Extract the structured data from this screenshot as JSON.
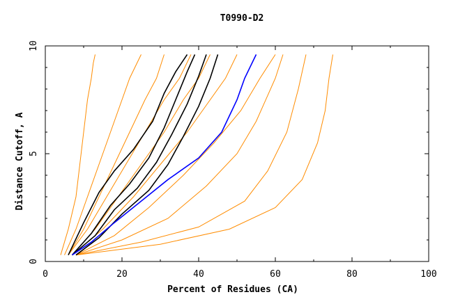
{
  "chart_data": {
    "type": "line",
    "title": "T0990-D2",
    "xlabel": "Percent of Residues (CA)",
    "ylabel": "Distance Cutoff, A",
    "xlim": [
      0,
      100
    ],
    "ylim": [
      0,
      10
    ],
    "xticks": [
      0,
      20,
      40,
      60,
      80,
      100
    ],
    "yticks": [
      0,
      5,
      10
    ],
    "grid": false,
    "legend": "none",
    "colors": {
      "background_curves": "#ff8c00",
      "highlight": "#000000",
      "reference": "#0000ff"
    },
    "series": [
      {
        "group": "background",
        "color": "#ff8c00",
        "x": [
          4,
          6,
          8,
          9,
          10,
          11,
          12,
          12.5,
          13
        ],
        "y": [
          0.3,
          1.5,
          3,
          4.5,
          6,
          7.5,
          8.5,
          9.2,
          9.6
        ]
      },
      {
        "group": "background",
        "color": "#ff8c00",
        "x": [
          5,
          8,
          11,
          14,
          17,
          20,
          22,
          25
        ],
        "y": [
          0.3,
          1.5,
          3,
          4.5,
          6,
          7.5,
          8.5,
          9.6
        ]
      },
      {
        "group": "background",
        "color": "#ff8c00",
        "x": [
          6,
          10,
          14,
          18,
          22,
          26,
          29,
          31
        ],
        "y": [
          0.3,
          1.5,
          3,
          4.5,
          6,
          7.5,
          8.5,
          9.6
        ]
      },
      {
        "group": "background",
        "color": "#ff8c00",
        "x": [
          6,
          11,
          16,
          21,
          26,
          31,
          35,
          38
        ],
        "y": [
          0.3,
          1.5,
          3,
          4.5,
          6,
          7.5,
          8.5,
          9.6
        ]
      },
      {
        "group": "background",
        "color": "#ff8c00",
        "x": [
          7,
          13,
          19,
          25,
          31,
          36,
          40,
          43
        ],
        "y": [
          0.3,
          1.5,
          3,
          4.5,
          6,
          7.5,
          8.5,
          9.6
        ]
      },
      {
        "group": "background",
        "color": "#ff8c00",
        "x": [
          7,
          15,
          23,
          30,
          37,
          43,
          47,
          50
        ],
        "y": [
          0.3,
          1.5,
          3,
          4.5,
          6,
          7.5,
          8.5,
          9.6
        ]
      },
      {
        "group": "background",
        "color": "#ff8c00",
        "x": [
          8,
          18,
          27,
          36,
          44,
          51,
          56,
          60
        ],
        "y": [
          0.3,
          1.2,
          2.5,
          4,
          5.5,
          7,
          8.5,
          9.6
        ]
      },
      {
        "group": "background",
        "color": "#ff8c00",
        "x": [
          8,
          20,
          32,
          42,
          50,
          55,
          60,
          62
        ],
        "y": [
          0.3,
          1,
          2,
          3.5,
          5,
          6.5,
          8.5,
          9.6
        ]
      },
      {
        "group": "background",
        "color": "#ff8c00",
        "x": [
          8,
          25,
          40,
          52,
          58,
          63,
          66,
          68
        ],
        "y": [
          0.3,
          0.9,
          1.6,
          2.8,
          4.2,
          6,
          8,
          9.6
        ]
      },
      {
        "group": "background",
        "color": "#ff8c00",
        "x": [
          8,
          30,
          48,
          60,
          67,
          71,
          73,
          74,
          75
        ],
        "y": [
          0.3,
          0.8,
          1.5,
          2.5,
          3.8,
          5.5,
          7,
          8.5,
          9.6
        ]
      },
      {
        "group": "highlight",
        "color": "#000000",
        "x": [
          6,
          10,
          14,
          18,
          23,
          28,
          31,
          34,
          37
        ],
        "y": [
          0.3,
          1.8,
          3.2,
          4.2,
          5.2,
          6.5,
          7.8,
          8.8,
          9.6
        ]
      },
      {
        "group": "highlight",
        "color": "#000000",
        "x": [
          7,
          12,
          17,
          22,
          27,
          31,
          34,
          37,
          39
        ],
        "y": [
          0.3,
          1.3,
          2.6,
          3.6,
          4.8,
          6.2,
          7.5,
          8.8,
          9.6
        ]
      },
      {
        "group": "highlight",
        "color": "#000000",
        "x": [
          7,
          13,
          18,
          24,
          29,
          33,
          37,
          40,
          42
        ],
        "y": [
          0.3,
          1.2,
          2.4,
          3.4,
          4.6,
          5.9,
          7.3,
          8.6,
          9.6
        ]
      },
      {
        "group": "highlight",
        "color": "#000000",
        "x": [
          8,
          14,
          20,
          27,
          32,
          36,
          40,
          43,
          45
        ],
        "y": [
          0.3,
          1.1,
          2.2,
          3.3,
          4.5,
          5.8,
          7.2,
          8.5,
          9.6
        ]
      },
      {
        "group": "reference",
        "color": "#0000ff",
        "x": [
          7,
          12,
          18,
          25,
          32,
          40,
          46,
          50,
          52,
          55
        ],
        "y": [
          0.3,
          0.9,
          1.8,
          2.8,
          3.8,
          4.8,
          6,
          7.5,
          8.5,
          9.6
        ]
      }
    ]
  }
}
